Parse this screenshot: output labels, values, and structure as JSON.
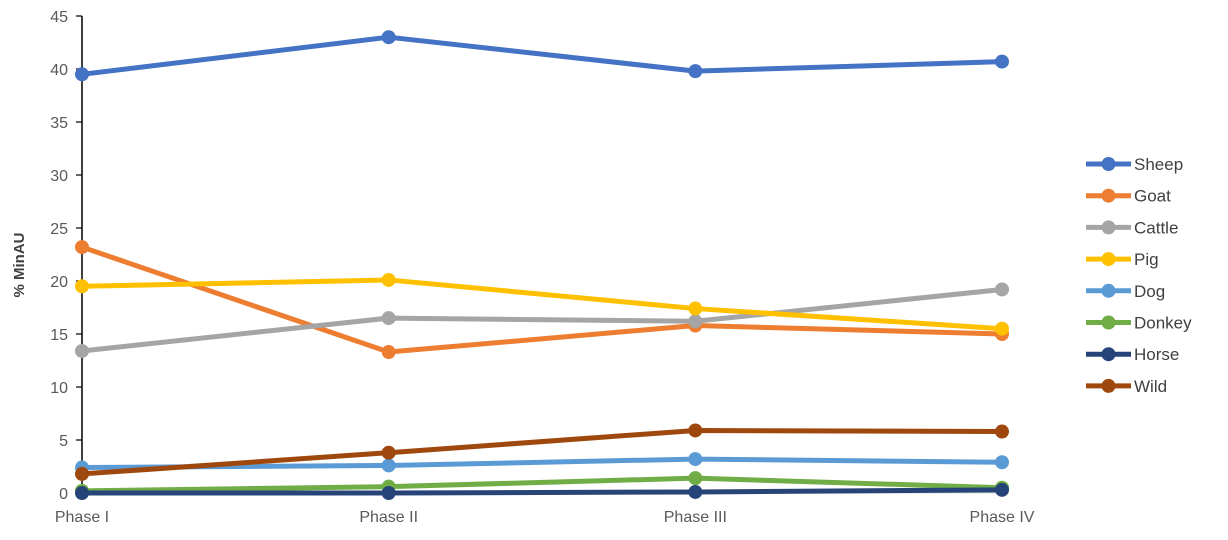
{
  "chart_data": {
    "type": "line",
    "title": "",
    "xlabel": "",
    "ylabel": "% MinAU",
    "categories": [
      "Phase I",
      "Phase II",
      "Phase III",
      "Phase IV"
    ],
    "ylim": [
      0,
      45
    ],
    "yticks": [
      "0",
      "5",
      "10",
      "15",
      "20",
      "25",
      "30",
      "35",
      "40",
      "45"
    ],
    "grid": false,
    "legend_position": "right",
    "series": [
      {
        "name": "Sheep",
        "color": "#4472C4",
        "values": [
          39.5,
          43.0,
          39.8,
          40.7
        ]
      },
      {
        "name": "Goat",
        "color": "#ED7D31",
        "values": [
          23.2,
          13.3,
          15.8,
          15.0
        ]
      },
      {
        "name": "Cattle",
        "color": "#A5A5A5",
        "values": [
          13.4,
          16.5,
          16.2,
          19.2
        ]
      },
      {
        "name": "Pig",
        "color": "#FFC000",
        "values": [
          19.5,
          20.1,
          17.4,
          15.5
        ]
      },
      {
        "name": "Dog",
        "color": "#5B9BD5",
        "values": [
          2.4,
          2.6,
          3.2,
          2.9
        ]
      },
      {
        "name": "Donkey",
        "color": "#70AD47",
        "values": [
          0.2,
          0.6,
          1.4,
          0.5
        ]
      },
      {
        "name": "Horse",
        "color": "#264478",
        "values": [
          0.0,
          0.0,
          0.1,
          0.3
        ]
      },
      {
        "name": "Wild",
        "color": "#9E480E",
        "values": [
          1.8,
          3.8,
          5.9,
          5.8
        ]
      }
    ]
  }
}
